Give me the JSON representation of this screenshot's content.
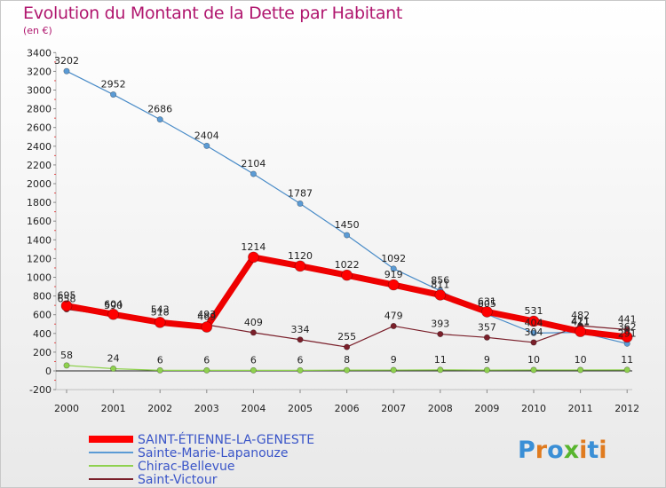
{
  "title": "Evolution du Montant de la Dette par Habitant",
  "subtitle": "(en €)",
  "brand": {
    "letters": [
      "P",
      "r",
      "o",
      "x",
      "i",
      "t",
      "i"
    ],
    "colors": [
      "#3a8fd6",
      "#e07b1f",
      "#3a8fd6",
      "#58b52e",
      "#e07b1f",
      "#3a8fd6",
      "#e07b1f"
    ]
  },
  "chart_data": {
    "type": "line",
    "title": "Evolution du Montant de la Dette par Habitant",
    "xlabel": "",
    "ylabel": "(en €)",
    "ylim": [
      -200,
      3400
    ],
    "y_ticks": [
      -200,
      0,
      200,
      400,
      600,
      800,
      1000,
      1200,
      1400,
      1600,
      1800,
      2000,
      2200,
      2400,
      2600,
      2800,
      3000,
      3200,
      3400
    ],
    "categories": [
      "2000",
      "2001",
      "2002",
      "2003",
      "2004",
      "2005",
      "2006",
      "2007",
      "2008",
      "2009",
      "2010",
      "2011",
      "2012"
    ],
    "grid": false,
    "legend_position": "bottom-left",
    "series": [
      {
        "name": "Sainte-Marie-Lapanouze",
        "color": "#5b9bd5",
        "stroke": "#4a8cc8",
        "values": [
          3202,
          2952,
          2686,
          2404,
          2104,
          1787,
          1450,
          1092,
          856,
          605,
          404,
          411,
          291
        ],
        "labels": [
          "3202",
          "2952",
          "2686",
          "2404",
          "2104",
          "1787",
          "1450",
          "1092",
          "856",
          "605",
          "404",
          "411",
          "291"
        ]
      },
      {
        "name": "Chirac-Bellevue",
        "color": "#8fd14f",
        "stroke": "#8fd14f",
        "values": [
          58,
          24,
          6,
          6,
          6,
          6,
          8,
          9,
          11,
          9,
          10,
          10,
          11
        ],
        "labels": [
          "58",
          "24",
          "6",
          "6",
          "6",
          "6",
          "8",
          "9",
          "11",
          "9",
          "10",
          "10",
          "11"
        ]
      },
      {
        "name": "Saint-Victour",
        "color": "#7a1f2a",
        "stroke": "#7a1f2a",
        "values": [
          658,
          590,
          543,
          493,
          409,
          334,
          255,
          479,
          393,
          357,
          304,
          482,
          441
        ],
        "labels": [
          "658",
          "590",
          "543",
          "493",
          "409",
          "334",
          "255",
          "479",
          "393",
          "357",
          "304",
          "482",
          "441"
        ]
      },
      {
        "name": "SAINT-ÉTIENNE-LA-GENESTE",
        "color": "#ff0000",
        "stroke": "#ee0000",
        "values": [
          695,
          604,
          518,
          469,
          1214,
          1120,
          1022,
          919,
          811,
          631,
          531,
          421,
          362
        ],
        "labels": [
          "695",
          "604",
          "518",
          "469",
          "1214",
          "1120",
          "1022",
          "919",
          "811",
          "631",
          "531",
          "421",
          "362"
        ]
      }
    ],
    "legend": [
      "SAINT-ÉTIENNE-LA-GENESTE",
      "Sainte-Marie-Lapanouze",
      "Chirac-Bellevue",
      "Saint-Victour"
    ]
  }
}
